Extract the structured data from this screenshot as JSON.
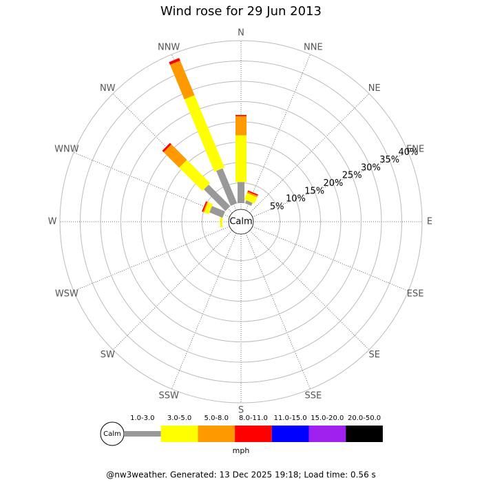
{
  "chart_data": {
    "type": "windrose",
    "title": "Wind rose for 29 Jun 2013",
    "categories": [
      "N",
      "NNE",
      "NE",
      "ENE",
      "E",
      "ESE",
      "SE",
      "SSE",
      "S",
      "SSW",
      "SW",
      "WSW",
      "W",
      "WNW",
      "NW",
      "NNW"
    ],
    "series": [
      {
        "name": "1.0-3.0",
        "color": "#999999",
        "values": [
          5.2,
          0.8,
          0,
          0,
          0,
          0,
          0,
          0,
          0,
          0,
          0,
          0,
          0,
          3.5,
          7.5,
          9.3
        ]
      },
      {
        "name": "3.0-5.0",
        "color": "#ffff00",
        "values": [
          11.5,
          1.7,
          0,
          0,
          0,
          0,
          0,
          0,
          0,
          0,
          0,
          0,
          0.6,
          1.2,
          8.1,
          19.3
        ]
      },
      {
        "name": "5.0-8.0",
        "color": "#ff9900",
        "values": [
          4.7,
          0.4,
          0,
          0,
          0,
          0,
          0,
          0,
          0,
          0,
          0,
          0,
          0,
          0.3,
          5.4,
          9.2
        ]
      },
      {
        "name": "8.0-11.0",
        "color": "#ff0000",
        "values": [
          0.3,
          0.3,
          0,
          0,
          0,
          0,
          0,
          0,
          0,
          0,
          0,
          0,
          0,
          0.3,
          0.5,
          0.7
        ]
      },
      {
        "name": "11.0-15.0",
        "color": "#0000ff",
        "values": [
          0,
          0,
          0,
          0,
          0,
          0,
          0,
          0,
          0,
          0,
          0,
          0,
          0,
          0,
          0,
          0
        ]
      },
      {
        "name": "15.0-20.0",
        "color": "#a020f0",
        "values": [
          0,
          0,
          0,
          0,
          0,
          0,
          0,
          0,
          0,
          0,
          0,
          0,
          0,
          0,
          0,
          0
        ]
      },
      {
        "name": "20.0-50.0",
        "color": "#000000",
        "values": [
          0,
          0,
          0,
          0,
          0,
          0,
          0,
          0,
          0,
          0,
          0,
          0,
          0,
          0,
          0,
          0
        ]
      }
    ],
    "rlim": [
      0,
      40
    ],
    "rticks": [
      {
        "value": 5,
        "label": "5%"
      },
      {
        "value": 10,
        "label": "10%"
      },
      {
        "value": 15,
        "label": "15%"
      },
      {
        "value": 20,
        "label": "20%"
      },
      {
        "value": 25,
        "label": "25%"
      },
      {
        "value": 30,
        "label": "30%"
      },
      {
        "value": 35,
        "label": "35%"
      },
      {
        "value": 40,
        "label": "40%"
      }
    ],
    "calm_label": "Calm",
    "legend_calm_label": "Calm",
    "unit_label": "mph",
    "footer": "@nw3weather. Generated: 13 Dec 2025 19:18; Load time: 0.56 s"
  }
}
